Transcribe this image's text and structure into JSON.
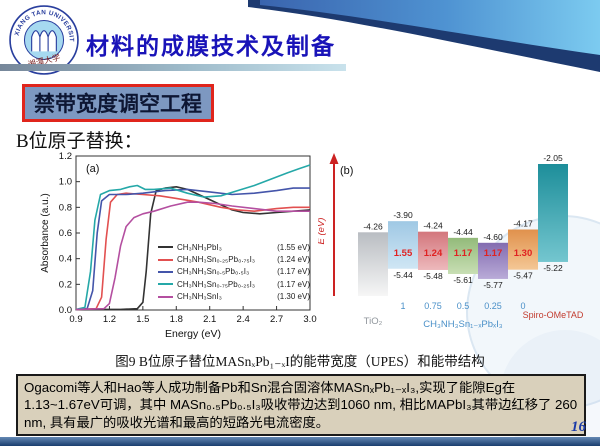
{
  "page": {
    "number": "16"
  },
  "header": {
    "title": "材料的成膜技术及制备",
    "logo_arc_text": "XIANG TAN UNIVERSITY",
    "logo_cn_text": "湘潭大学"
  },
  "subtitle_box": {
    "text": "禁带宽度调空工程"
  },
  "section_label": "B位原子替换：",
  "figure_caption": "图9  B位原子替位MASnₓPb₁₋ₓI的能带宽度（UPES）和能带结构",
  "summary": {
    "text": "Ogacomi等人和Hao等人成功制备Pb和Sn混合固溶体MASnₓPb₁₋ₓI₃,实现了能隙Eg在1.13~1.67eV可调，其中 MASn₀.₅Pb₀.₅I₃吸收带边达到1060 nm, 相比MAPbI₃其带边红移了 260 nm, 具有最广的吸收光谱和最高的短路光电流密度。"
  },
  "colors": {
    "title_blue": "#1913b8",
    "subtitle_border_red": "#e0251c",
    "subtitle_bg": "#7d98c1",
    "summary_bg": "#d9d0bb",
    "bottom_bar_navy": "#1a3e6e",
    "page_number_blue": "#1a3aa8"
  },
  "chart_data": [
    {
      "type": "line",
      "panel_label": "(a)",
      "xlabel": "Energy (eV)",
      "ylabel": "Absorbance (a.u.)",
      "xlim": [
        0.9,
        3.0
      ],
      "ylim": [
        0.0,
        1.2
      ],
      "xticks": [
        0.9,
        1.2,
        1.5,
        1.8,
        2.1,
        2.4,
        2.7,
        3.0
      ],
      "yticks": [
        0.0,
        0.2,
        0.4,
        0.6,
        0.8,
        1.0,
        1.2
      ],
      "legend_position": "lower right inside",
      "grid": false,
      "series": [
        {
          "name": "CH₃NH₃PbI₃",
          "bandgap": "(1.55 eV)",
          "color": "#333333",
          "points": [
            [
              0.9,
              0.005
            ],
            [
              1.3,
              0.005
            ],
            [
              1.45,
              0.01
            ],
            [
              1.5,
              0.06
            ],
            [
              1.53,
              0.3
            ],
            [
              1.57,
              0.75
            ],
            [
              1.62,
              0.93
            ],
            [
              1.7,
              0.95
            ],
            [
              1.8,
              0.96
            ],
            [
              1.9,
              0.94
            ],
            [
              2.0,
              0.9
            ],
            [
              2.1,
              0.86
            ],
            [
              2.2,
              0.82
            ],
            [
              2.3,
              0.78
            ],
            [
              2.4,
              0.76
            ],
            [
              2.55,
              0.75
            ],
            [
              2.7,
              0.76
            ],
            [
              2.85,
              0.77
            ],
            [
              3.0,
              0.78
            ]
          ]
        },
        {
          "name": "CH₃NH₃Sn₀.₂₅Pb₀.₇₅I₃",
          "bandgap": "(1.24 eV)",
          "color": "#e25050",
          "points": [
            [
              0.9,
              0.005
            ],
            [
              1.08,
              0.01
            ],
            [
              1.13,
              0.1
            ],
            [
              1.17,
              0.55
            ],
            [
              1.21,
              0.84
            ],
            [
              1.27,
              0.9
            ],
            [
              1.35,
              0.91
            ],
            [
              1.5,
              0.9
            ],
            [
              1.65,
              0.89
            ],
            [
              1.8,
              0.87
            ],
            [
              2.0,
              0.84
            ],
            [
              2.2,
              0.8
            ],
            [
              2.35,
              0.78
            ],
            [
              2.5,
              0.77
            ],
            [
              2.7,
              0.79
            ],
            [
              2.85,
              0.8
            ],
            [
              3.0,
              0.8
            ]
          ]
        },
        {
          "name": "CH₃NH₃Sn₀.₅Pb₀.₅I₃",
          "bandgap": "(1.17 eV)",
          "color": "#4455aa",
          "points": [
            [
              0.9,
              0.005
            ],
            [
              1.0,
              0.01
            ],
            [
              1.05,
              0.15
            ],
            [
              1.09,
              0.6
            ],
            [
              1.13,
              0.85
            ],
            [
              1.2,
              0.9
            ],
            [
              1.35,
              0.9
            ],
            [
              1.5,
              0.91
            ],
            [
              1.7,
              0.93
            ],
            [
              1.9,
              0.94
            ],
            [
              2.1,
              0.92
            ],
            [
              2.3,
              0.9
            ],
            [
              2.5,
              0.91
            ],
            [
              2.7,
              0.93
            ],
            [
              2.85,
              0.95
            ],
            [
              3.0,
              0.95
            ]
          ]
        },
        {
          "name": "CH₃NH₃Sn₀.₇₅Pb₀.₂₅I₃",
          "bandgap": "(1.17 eV)",
          "color": "#25a8a8",
          "points": [
            [
              0.9,
              0.005
            ],
            [
              0.98,
              0.02
            ],
            [
              1.03,
              0.3
            ],
            [
              1.07,
              0.7
            ],
            [
              1.12,
              0.9
            ],
            [
              1.2,
              0.93
            ],
            [
              1.3,
              0.94
            ],
            [
              1.38,
              0.96
            ],
            [
              1.45,
              0.97
            ],
            [
              1.52,
              0.94
            ],
            [
              1.6,
              0.94
            ],
            [
              1.75,
              0.95
            ],
            [
              1.9,
              0.91
            ],
            [
              2.05,
              0.88
            ],
            [
              2.2,
              0.89
            ],
            [
              2.35,
              0.93
            ],
            [
              2.5,
              0.97
            ],
            [
              2.65,
              1.02
            ],
            [
              2.8,
              1.07
            ],
            [
              2.9,
              1.1
            ],
            [
              3.0,
              1.13
            ]
          ]
        },
        {
          "name": "CH₃NH₃SnI₃",
          "bandgap": "(1.30 eV)",
          "color": "#b44fa0",
          "points": [
            [
              0.9,
              0.005
            ],
            [
              1.15,
              0.01
            ],
            [
              1.2,
              0.05
            ],
            [
              1.25,
              0.25
            ],
            [
              1.3,
              0.5
            ],
            [
              1.35,
              0.65
            ],
            [
              1.42,
              0.72
            ],
            [
              1.5,
              0.75
            ],
            [
              1.6,
              0.77
            ],
            [
              1.75,
              0.81
            ],
            [
              1.9,
              0.84
            ],
            [
              2.0,
              0.84
            ],
            [
              2.15,
              0.83
            ],
            [
              2.3,
              0.81
            ],
            [
              2.5,
              0.79
            ],
            [
              2.7,
              0.77
            ],
            [
              2.85,
              0.77
            ],
            [
              3.0,
              0.77
            ]
          ]
        }
      ]
    },
    {
      "type": "band-diagram",
      "panel_label": "(b)",
      "ylabel": "E (eV)",
      "axis_color": "#cc2222",
      "gap_color": "#e02222",
      "fraction_label_color": "#4a90c8",
      "group_label": "CH₃NH₃Sn₁₋ₓPbₓI₃",
      "bars": [
        {
          "name": "TiO₂",
          "top": -4.26,
          "bottom": null,
          "gap": null,
          "color_top": "#b9bdc2",
          "color_bottom": "#f6f6f6",
          "label_color": "#90969c"
        },
        {
          "name": "1",
          "top": -3.9,
          "bottom": -5.44,
          "gap": "1.55",
          "color_top": "#9fc8e4",
          "color_bottom": "#cfe6f4"
        },
        {
          "name": "0.75",
          "top": -4.24,
          "bottom": -5.48,
          "gap": "1.24",
          "color_top": "#d3767c",
          "color_bottom": "#edb9bc"
        },
        {
          "name": "0.5",
          "top": -4.44,
          "bottom": -5.61,
          "gap": "1.17",
          "color_top": "#93ba7a",
          "color_bottom": "#c8deb4"
        },
        {
          "name": "0.25",
          "top": -4.6,
          "bottom": -5.77,
          "gap": "1.17",
          "color_top": "#836cb0",
          "color_bottom": "#b9abd8"
        },
        {
          "name": "0",
          "top": -4.17,
          "bottom": -5.47,
          "gap": "1.30",
          "color_top": "#e0914c",
          "color_bottom": "#f4c795"
        },
        {
          "name": "Spiro-OMeTAD",
          "top": -2.05,
          "bottom": -5.22,
          "gap": null,
          "color_top": "#1d8e9a",
          "color_bottom": "#74c6cf",
          "label_color": "#c23b2e"
        }
      ]
    }
  ]
}
